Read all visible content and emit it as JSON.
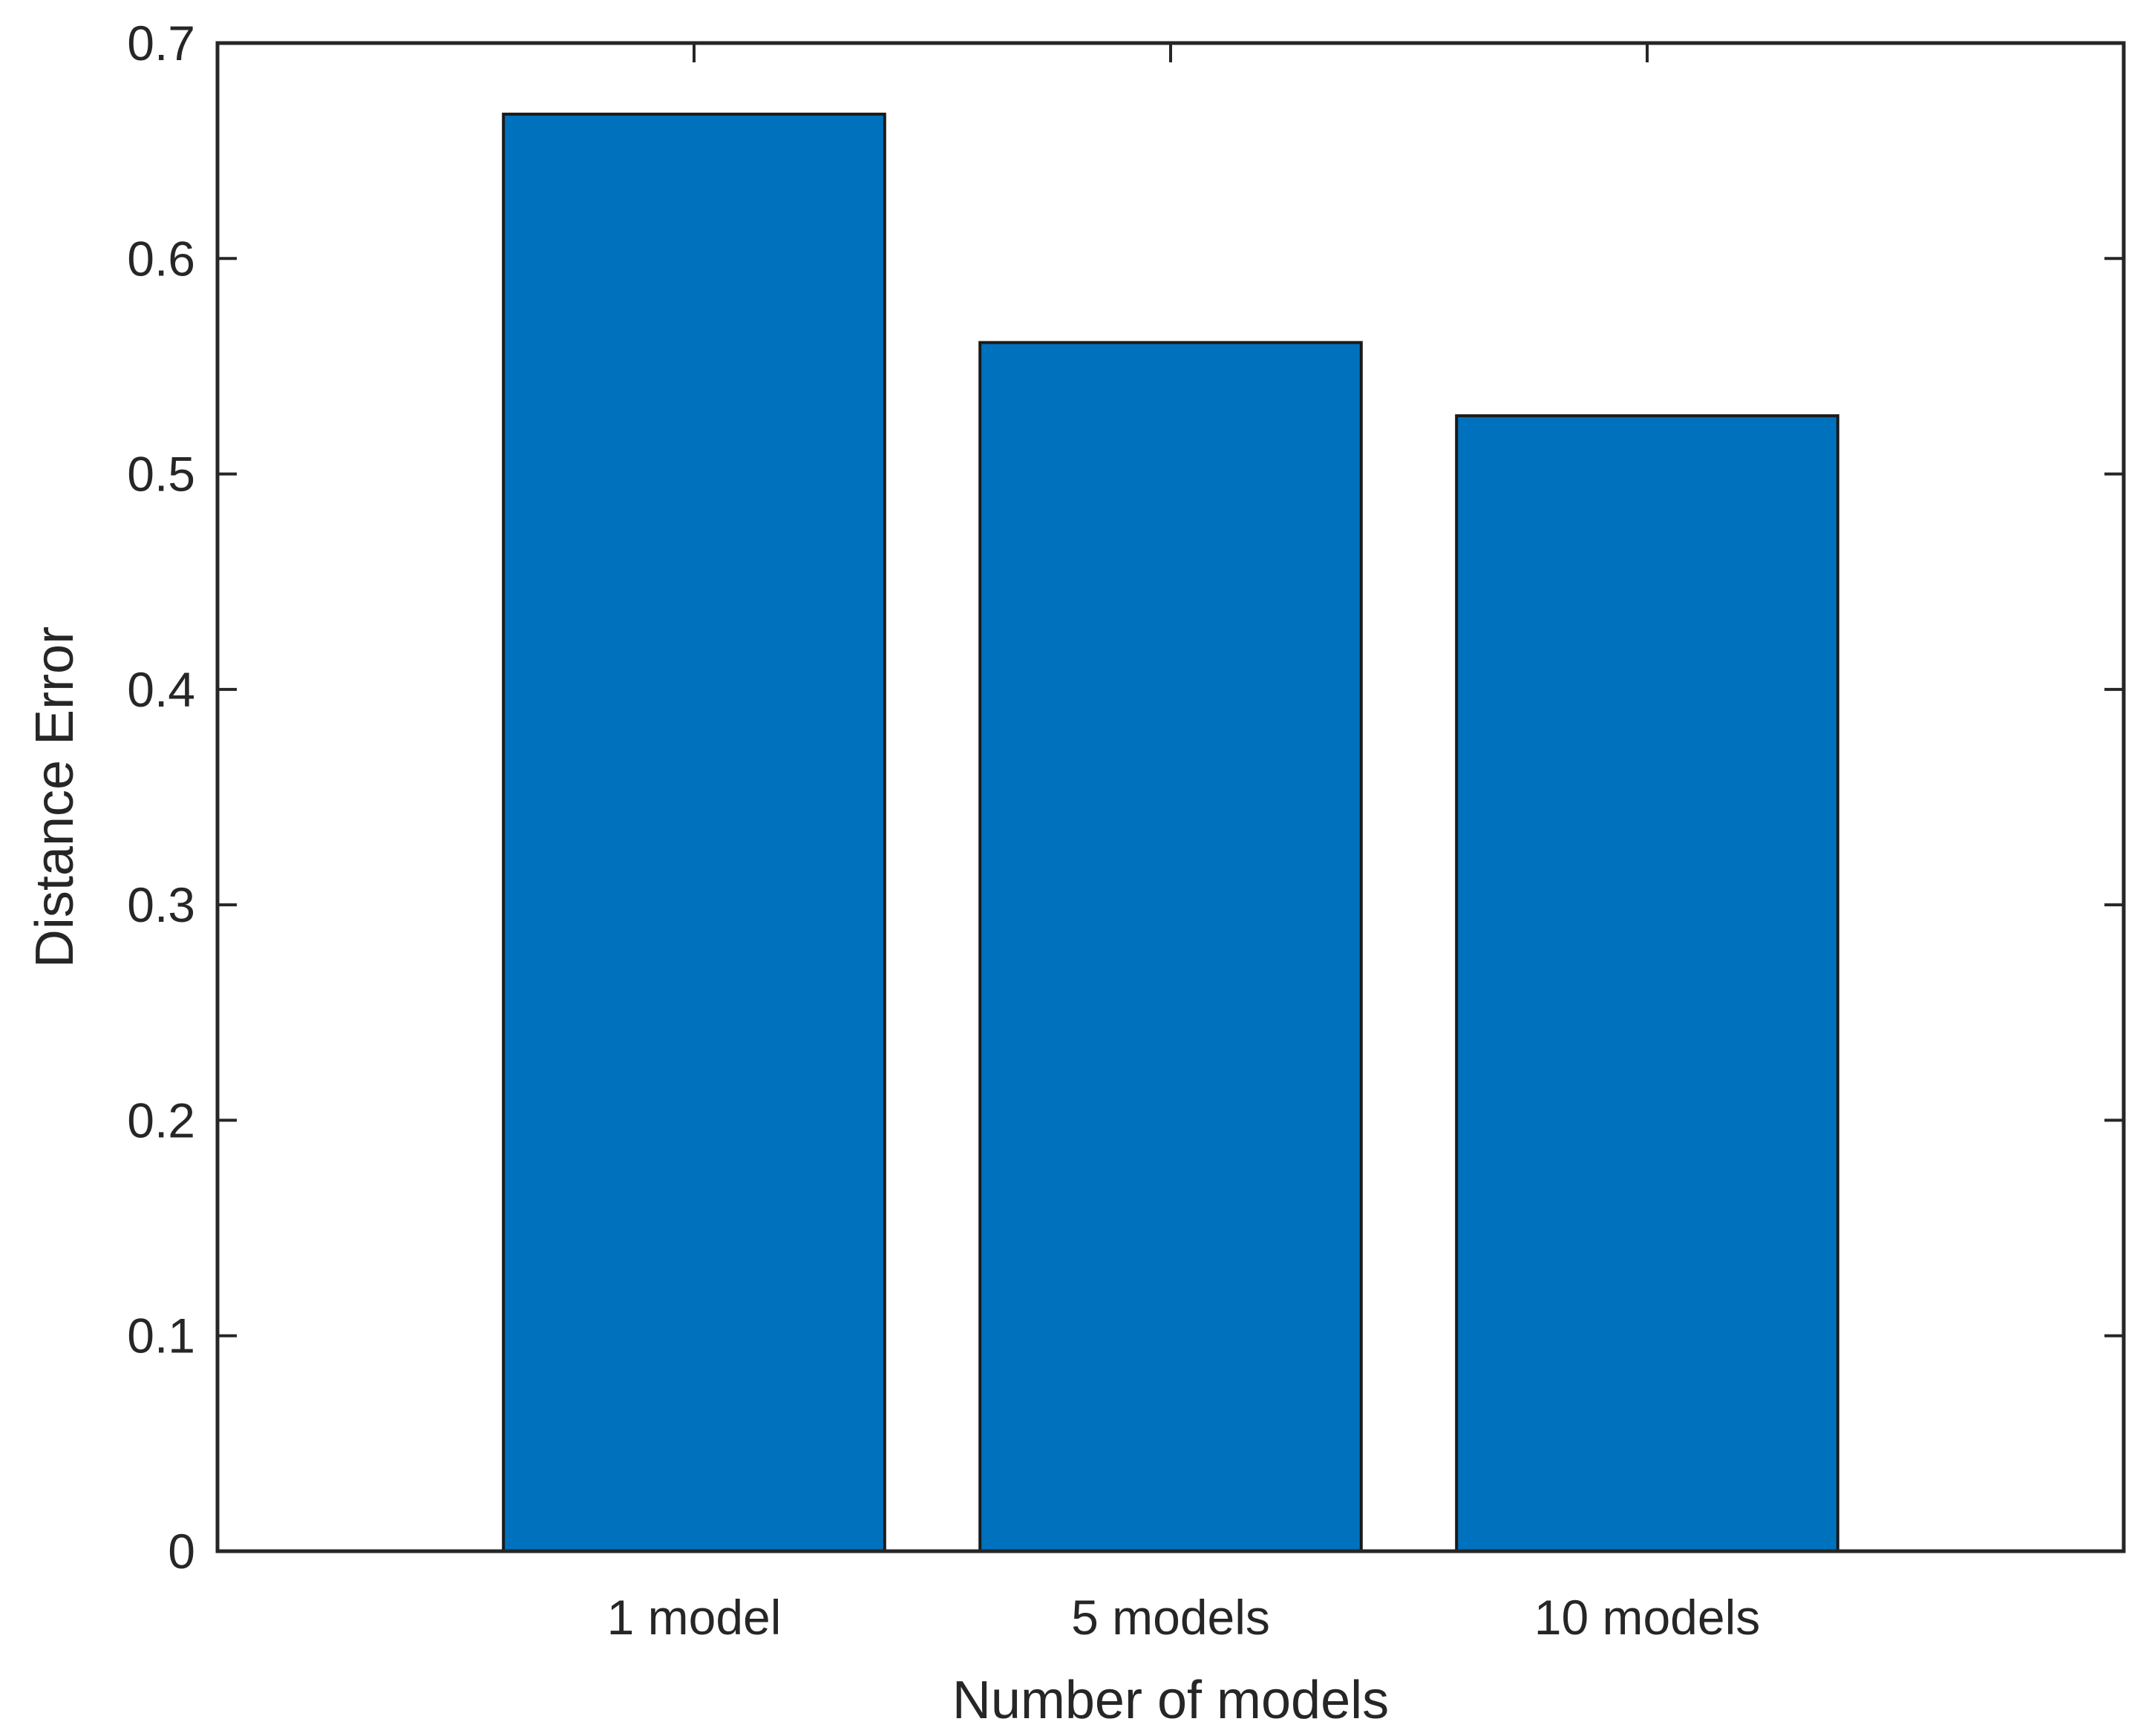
{
  "chart_data": {
    "type": "bar",
    "title": "",
    "xlabel": "Number of models",
    "ylabel": "Distance Error",
    "categories": [
      "1 model",
      "5 models",
      "10 models"
    ],
    "values": [
      0.667,
      0.561,
      0.527
    ],
    "ylim": [
      0,
      0.7
    ],
    "yticks": [
      0,
      0.1,
      0.2,
      0.3,
      0.4,
      0.5,
      0.6,
      0.7
    ],
    "ytick_labels": [
      "0",
      "0.1",
      "0.2",
      "0.3",
      "0.4",
      "0.5",
      "0.6",
      "0.7"
    ],
    "grid": false,
    "legend": "none",
    "bar_color": "#0072BD",
    "bar_edge_color": "#1a1a1a",
    "axis_color": "#262626"
  }
}
